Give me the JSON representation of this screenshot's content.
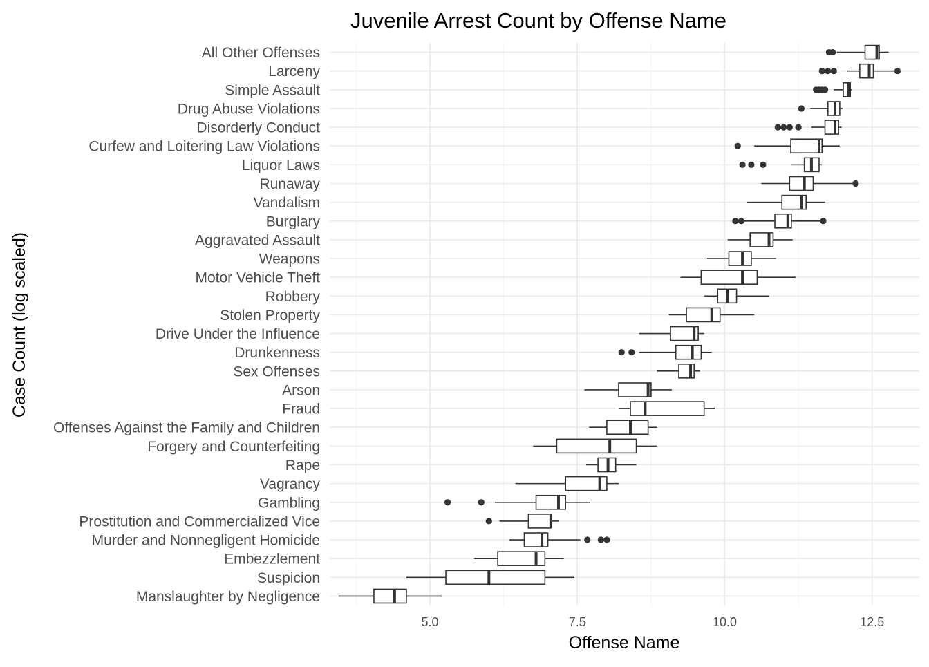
{
  "chart_data": {
    "type": "boxplot",
    "orientation": "horizontal",
    "title": "Juvenile Arrest Count by Offense Name",
    "xlabel": "Offense Name",
    "ylabel": "Case Count (log scaled)",
    "xlim": [
      3.3,
      13.3
    ],
    "xticks": [
      5.0,
      7.5,
      10.0,
      12.5
    ],
    "xtick_labels": [
      "5.0",
      "7.5",
      "10.0",
      "12.5"
    ],
    "grid": true,
    "colors": {
      "box_fill": "#ffffff",
      "box_stroke": "#333333",
      "grid": "#ebebeb",
      "tick_text": "#4d4d4d"
    },
    "categories": [
      "All Other Offenses",
      "Larceny",
      "Simple Assault",
      "Drug Abuse Violations",
      "Disorderly Conduct",
      "Curfew and Loitering Law Violations",
      "Liquor Laws",
      "Runaway",
      "Vandalism",
      "Burglary",
      "Aggravated Assault",
      "Weapons",
      "Motor Vehicle Theft",
      "Robbery",
      "Stolen Property",
      "Drive Under the Influence",
      "Drunkenness",
      "Sex Offenses",
      "Arson",
      "Fraud",
      "Offenses Against the Family and Children",
      "Forgery and Counterfeiting",
      "Rape",
      "Vagrancy",
      "Gambling",
      "Prostitution and Commercialized Vice",
      "Murder and Nonnegligent Homicide",
      "Embezzlement",
      "Suspicion",
      "Manslaughter by Negligence"
    ],
    "boxes": [
      {
        "min": 11.9,
        "q1": 12.38,
        "median": 12.58,
        "q3": 12.62,
        "max": 12.78,
        "outliers": [
          11.77,
          11.83
        ]
      },
      {
        "min": 12.07,
        "q1": 12.29,
        "median": 12.45,
        "q3": 12.52,
        "max": 12.92,
        "outliers": [
          11.65,
          11.75,
          11.85,
          12.93
        ]
      },
      {
        "min": 11.85,
        "q1": 12.01,
        "median": 12.1,
        "q3": 12.13,
        "max": 12.15,
        "outliers": [
          11.55,
          11.6,
          11.65,
          11.7
        ]
      },
      {
        "min": 11.45,
        "q1": 11.75,
        "median": 11.87,
        "q3": 11.95,
        "max": 12.0,
        "outliers": [
          11.3
        ]
      },
      {
        "min": 11.47,
        "q1": 11.7,
        "median": 11.87,
        "q3": 11.93,
        "max": 11.98,
        "outliers": [
          10.9,
          11.0,
          11.1,
          11.25
        ]
      },
      {
        "min": 10.5,
        "q1": 11.12,
        "median": 11.6,
        "q3": 11.65,
        "max": 11.95,
        "outliers": [
          10.22
        ]
      },
      {
        "min": 11.12,
        "q1": 11.35,
        "median": 11.47,
        "q3": 11.6,
        "max": 11.65,
        "outliers": [
          10.3,
          10.45,
          10.65
        ]
      },
      {
        "min": 10.62,
        "q1": 11.1,
        "median": 11.35,
        "q3": 11.5,
        "max": 12.2,
        "outliers": [
          12.22
        ]
      },
      {
        "min": 10.37,
        "q1": 10.97,
        "median": 11.3,
        "q3": 11.38,
        "max": 11.7,
        "outliers": []
      },
      {
        "min": 10.33,
        "q1": 10.85,
        "median": 11.07,
        "q3": 11.13,
        "max": 11.65,
        "outliers": [
          10.18,
          10.28,
          11.67
        ]
      },
      {
        "min": 10.05,
        "q1": 10.43,
        "median": 10.75,
        "q3": 10.82,
        "max": 11.15,
        "outliers": []
      },
      {
        "min": 9.7,
        "q1": 10.07,
        "median": 10.3,
        "q3": 10.45,
        "max": 10.87,
        "outliers": []
      },
      {
        "min": 9.25,
        "q1": 9.6,
        "median": 10.3,
        "q3": 10.55,
        "max": 11.2,
        "outliers": []
      },
      {
        "min": 9.65,
        "q1": 9.88,
        "median": 10.05,
        "q3": 10.2,
        "max": 10.75,
        "outliers": []
      },
      {
        "min": 9.05,
        "q1": 9.35,
        "median": 9.78,
        "q3": 9.92,
        "max": 10.5,
        "outliers": []
      },
      {
        "min": 8.55,
        "q1": 9.08,
        "median": 9.48,
        "q3": 9.55,
        "max": 9.65,
        "outliers": []
      },
      {
        "min": 8.55,
        "q1": 9.17,
        "median": 9.45,
        "q3": 9.6,
        "max": 9.78,
        "outliers": [
          8.25,
          8.42
        ]
      },
      {
        "min": 8.85,
        "q1": 9.22,
        "median": 9.42,
        "q3": 9.48,
        "max": 9.58,
        "outliers": []
      },
      {
        "min": 7.62,
        "q1": 8.2,
        "median": 8.7,
        "q3": 8.75,
        "max": 9.1,
        "outliers": []
      },
      {
        "min": 8.2,
        "q1": 8.4,
        "median": 8.65,
        "q3": 9.65,
        "max": 9.83,
        "outliers": []
      },
      {
        "min": 7.7,
        "q1": 8.0,
        "median": 8.4,
        "q3": 8.7,
        "max": 8.85,
        "outliers": []
      },
      {
        "min": 6.75,
        "q1": 7.15,
        "median": 8.05,
        "q3": 8.5,
        "max": 8.85,
        "outliers": []
      },
      {
        "min": 7.65,
        "q1": 7.85,
        "median": 8.02,
        "q3": 8.15,
        "max": 8.5,
        "outliers": []
      },
      {
        "min": 6.45,
        "q1": 7.3,
        "median": 7.88,
        "q3": 8.0,
        "max": 8.2,
        "outliers": []
      },
      {
        "min": 6.1,
        "q1": 6.8,
        "median": 7.18,
        "q3": 7.3,
        "max": 7.72,
        "outliers": [
          5.3,
          5.87
        ]
      },
      {
        "min": 6.18,
        "q1": 6.67,
        "median": 7.05,
        "q3": 7.05,
        "max": 7.18,
        "outliers": [
          6.0
        ]
      },
      {
        "min": 6.35,
        "q1": 6.6,
        "median": 6.9,
        "q3": 7.0,
        "max": 7.55,
        "outliers": [
          7.67,
          7.9,
          8.0
        ]
      },
      {
        "min": 5.75,
        "q1": 6.15,
        "median": 6.8,
        "q3": 6.95,
        "max": 7.27,
        "outliers": []
      },
      {
        "min": 4.6,
        "q1": 5.27,
        "median": 6.0,
        "q3": 6.95,
        "max": 7.45,
        "outliers": []
      },
      {
        "min": 3.45,
        "q1": 4.05,
        "median": 4.4,
        "q3": 4.6,
        "max": 5.2,
        "outliers": []
      }
    ]
  }
}
